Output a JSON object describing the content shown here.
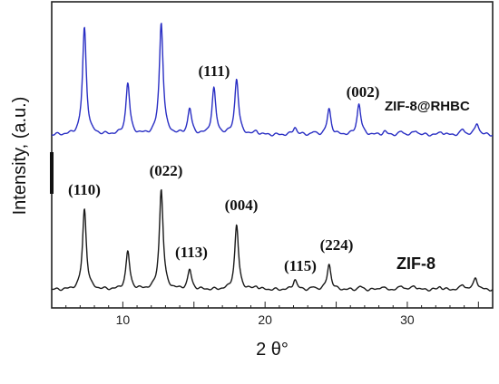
{
  "chart_data": {
    "type": "line",
    "xlabel": "2 θ°",
    "ylabel": "Intensity, (a.u.)",
    "xlim": [
      5,
      36
    ],
    "x_ticks": [
      "10",
      "20",
      "30"
    ],
    "grid": false,
    "series": [
      {
        "name": "ZIF-8@RHBC",
        "color": "#2a2fc4",
        "peaks": [
          {
            "x": 7.3,
            "h": 1.0
          },
          {
            "x": 10.35,
            "h": 0.48
          },
          {
            "x": 12.7,
            "h": 1.05
          },
          {
            "x": 14.7,
            "h": 0.24
          },
          {
            "x": 16.4,
            "h": 0.43
          },
          {
            "x": 18.0,
            "h": 0.52
          },
          {
            "x": 19.4,
            "h": 0.03
          },
          {
            "x": 22.1,
            "h": 0.07
          },
          {
            "x": 23.4,
            "h": 0.02
          },
          {
            "x": 24.5,
            "h": 0.24
          },
          {
            "x": 26.6,
            "h": 0.29
          },
          {
            "x": 28.4,
            "h": 0.03
          },
          {
            "x": 29.6,
            "h": 0.03
          },
          {
            "x": 30.6,
            "h": 0.04
          },
          {
            "x": 32.4,
            "h": 0.03
          },
          {
            "x": 33.9,
            "h": 0.05
          },
          {
            "x": 34.9,
            "h": 0.11
          }
        ]
      },
      {
        "name": "ZIF-8",
        "color": "#1a1a1a",
        "peaks": [
          {
            "x": 7.3,
            "h": 0.79
          },
          {
            "x": 10.35,
            "h": 0.37
          },
          {
            "x": 12.7,
            "h": 0.98
          },
          {
            "x": 14.7,
            "h": 0.19
          },
          {
            "x": 18.0,
            "h": 0.63
          },
          {
            "x": 19.4,
            "h": 0.03
          },
          {
            "x": 22.1,
            "h": 0.1
          },
          {
            "x": 23.4,
            "h": 0.02
          },
          {
            "x": 24.5,
            "h": 0.25
          },
          {
            "x": 26.7,
            "h": 0.03
          },
          {
            "x": 28.2,
            "h": 0.03
          },
          {
            "x": 29.6,
            "h": 0.04
          },
          {
            "x": 30.5,
            "h": 0.04
          },
          {
            "x": 32.3,
            "h": 0.03
          },
          {
            "x": 33.9,
            "h": 0.05
          },
          {
            "x": 34.8,
            "h": 0.12
          }
        ]
      }
    ],
    "annotations": [
      {
        "text": "(111)",
        "series": "ZIF-8@RHBC",
        "x": 16.5
      },
      {
        "text": "(002)",
        "series": "ZIF-8@RHBC",
        "x": 26.6
      },
      {
        "text": "(110)",
        "series": "ZIF-8",
        "x": 7.3
      },
      {
        "text": "(022)",
        "series": "ZIF-8",
        "x": 12.7
      },
      {
        "text": "(113)",
        "series": "ZIF-8",
        "x": 14.7
      },
      {
        "text": "(004)",
        "series": "ZIF-8",
        "x": 18.0
      },
      {
        "text": "(115)",
        "series": "ZIF-8",
        "x": 22.1
      },
      {
        "text": "(224)",
        "series": "ZIF-8",
        "x": 24.5
      }
    ]
  }
}
